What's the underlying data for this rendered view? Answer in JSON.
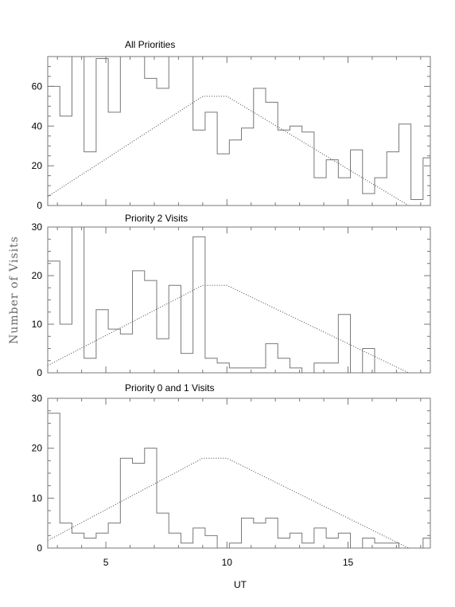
{
  "figure": {
    "ylabel": "Number of Visits",
    "xlabel": "UT"
  },
  "chart_data": [
    {
      "type": "histogram",
      "title": "All Priorities",
      "xlim": [
        2.6,
        18.4
      ],
      "ylim": [
        0,
        75
      ],
      "xticks": [
        5,
        10,
        15
      ],
      "yticks": [
        0,
        20,
        40,
        60
      ],
      "bin_edges": [
        2.6,
        3.1,
        3.6,
        4.1,
        4.6,
        5.1,
        5.6,
        6.1,
        6.6,
        7.1,
        7.6,
        8.1,
        8.6,
        9.1,
        9.6,
        10.1,
        10.6,
        11.1,
        11.6,
        12.1,
        12.6,
        13.1,
        13.6,
        14.1,
        14.6,
        15.1,
        15.6,
        16.1,
        16.6,
        17.1,
        17.6,
        18.1,
        18.4
      ],
      "counts": [
        60,
        45,
        75,
        27,
        74,
        47,
        75,
        75,
        64,
        59,
        75,
        75,
        38,
        47,
        26,
        33,
        39,
        59,
        52,
        38,
        40,
        37,
        14,
        23,
        14,
        28,
        6,
        14,
        27,
        41,
        3,
        24
      ],
      "overlay_line": {
        "x": [
          2.6,
          9.0,
          10.0,
          17.5
        ],
        "y": [
          4.5,
          55,
          55,
          0
        ]
      }
    },
    {
      "type": "histogram",
      "title": "Priority 2 Visits",
      "xlim": [
        2.6,
        18.4
      ],
      "ylim": [
        0,
        30
      ],
      "xticks": [
        5,
        10,
        15
      ],
      "yticks": [
        0,
        10,
        20,
        30
      ],
      "bin_edges": [
        2.6,
        3.1,
        3.6,
        4.1,
        4.6,
        5.1,
        5.6,
        6.1,
        6.6,
        7.1,
        7.6,
        8.1,
        8.6,
        9.1,
        9.6,
        10.1,
        10.6,
        11.1,
        11.6,
        12.1,
        12.6,
        13.1,
        13.6,
        14.1,
        14.6,
        15.1,
        15.6,
        16.1,
        16.6,
        17.1,
        17.6,
        18.1,
        18.4
      ],
      "counts": [
        23,
        10,
        30,
        3,
        13,
        9,
        8,
        21,
        19,
        7,
        18,
        4,
        28,
        3,
        2,
        1,
        1,
        1,
        6,
        3,
        1,
        0,
        2,
        2,
        12,
        0,
        5,
        0,
        0,
        0,
        0,
        0
      ],
      "overlay_line": {
        "x": [
          2.6,
          9.0,
          10.0,
          17.5
        ],
        "y": [
          1.5,
          18,
          18,
          0
        ]
      }
    },
    {
      "type": "histogram",
      "title": "Priority 0 and 1 Visits",
      "xlim": [
        2.6,
        18.4
      ],
      "ylim": [
        0,
        30
      ],
      "xticks": [
        5,
        10,
        15
      ],
      "yticks": [
        0,
        10,
        20,
        30
      ],
      "bin_edges": [
        2.6,
        3.1,
        3.6,
        4.1,
        4.6,
        5.1,
        5.6,
        6.1,
        6.6,
        7.1,
        7.6,
        8.1,
        8.6,
        9.1,
        9.6,
        10.1,
        10.6,
        11.1,
        11.6,
        12.1,
        12.6,
        13.1,
        13.6,
        14.1,
        14.6,
        15.1,
        15.6,
        16.1,
        16.6,
        17.1,
        17.6,
        18.1,
        18.4
      ],
      "counts": [
        27,
        5,
        3,
        2,
        3,
        5,
        18,
        17,
        20,
        7,
        3,
        1,
        4,
        2.5,
        0,
        1,
        6,
        5,
        6,
        2,
        3,
        1,
        4,
        2,
        3,
        0,
        2,
        1,
        1,
        0,
        0,
        2
      ],
      "overlay_line": {
        "x": [
          2.6,
          9.0,
          10.0,
          17.5
        ],
        "y": [
          1.5,
          18,
          18,
          0
        ]
      }
    }
  ]
}
